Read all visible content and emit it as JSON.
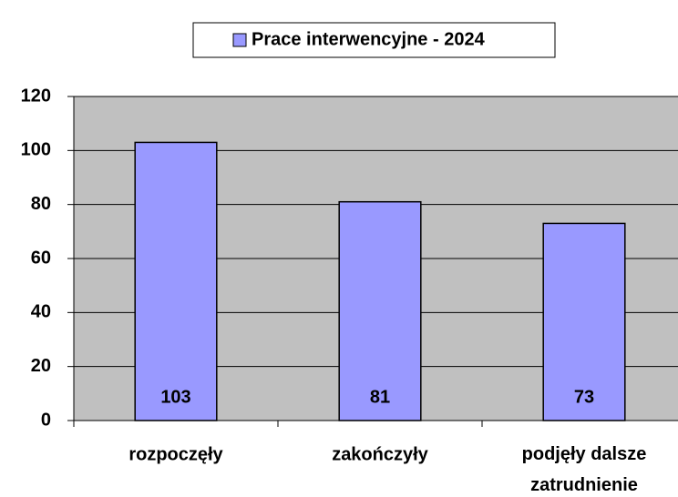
{
  "chart_data": {
    "type": "bar",
    "legend": "top",
    "series": [
      {
        "name": "Prace interwencyjne - 2024",
        "color": "#9999ff",
        "values": [
          103,
          81,
          73
        ]
      }
    ],
    "categories": [
      "rozpoczęły",
      "zakończyły",
      "podjęły dalsze zatrudnienie"
    ],
    "ylim": [
      0,
      120
    ],
    "yticks": [
      0,
      20,
      40,
      60,
      80,
      100,
      120
    ],
    "grid": true
  }
}
